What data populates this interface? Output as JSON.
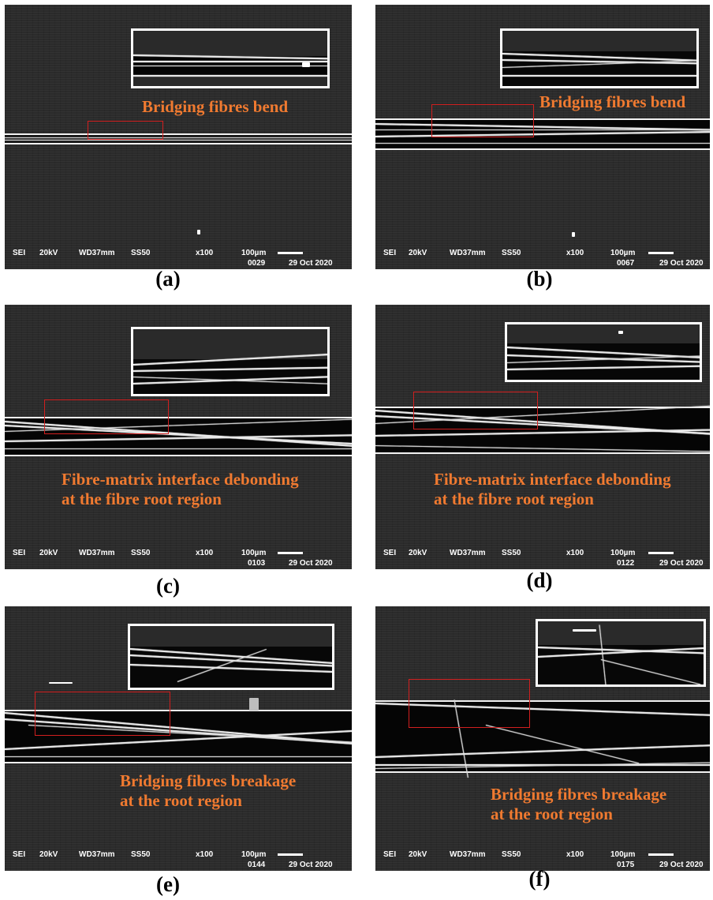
{
  "panels": [
    {
      "id": "a",
      "caption": "(a)",
      "annotation": "Bridging fibres bend",
      "sei": "SEI",
      "kv": "20kV",
      "wd": "WD37mm",
      "ss": "SS50",
      "mag": "x100",
      "scale": "100µm",
      "image_no": "0029",
      "date": "29 Oct 2020"
    },
    {
      "id": "b",
      "caption": "(b)",
      "annotation": "Bridging fibres bend",
      "sei": "SEI",
      "kv": "20kV",
      "wd": "WD37mm",
      "ss": "SS50",
      "mag": "x100",
      "scale": "100µm",
      "image_no": "0067",
      "date": "29 Oct 2020"
    },
    {
      "id": "c",
      "caption": "(c)",
      "annotation": "Fibre-matrix interface debonding\nat the fibre root region",
      "sei": "SEI",
      "kv": "20kV",
      "wd": "WD37mm",
      "ss": "SS50",
      "mag": "x100",
      "scale": "100µm",
      "image_no": "0103",
      "date": "29 Oct 2020"
    },
    {
      "id": "d",
      "caption": "(d)",
      "annotation": "Fibre-matrix interface debonding\nat the fibre root region",
      "sei": "SEI",
      "kv": "20kV",
      "wd": "WD37mm",
      "ss": "SS50",
      "mag": "x100",
      "scale": "100µm",
      "image_no": "0122",
      "date": "29 Oct 2020"
    },
    {
      "id": "e",
      "caption": "(e)",
      "annotation": "Bridging fibres breakage\nat the root region",
      "sei": "SEI",
      "kv": "20kV",
      "wd": "WD37mm",
      "ss": "SS50",
      "mag": "x100",
      "scale": "100µm",
      "image_no": "0144",
      "date": "29 Oct 2020"
    },
    {
      "id": "f",
      "caption": "(f)",
      "annotation": "Bridging fibres breakage\nat the root region",
      "sei": "SEI",
      "kv": "20kV",
      "wd": "WD37mm",
      "ss": "SS50",
      "mag": "x100",
      "scale": "100µm",
      "image_no": "0175",
      "date": "29 Oct 2020"
    }
  ],
  "colors": {
    "annotation": "#f07a30",
    "highlight_box": "#d21f1f",
    "inset_border": "#ffffff"
  }
}
